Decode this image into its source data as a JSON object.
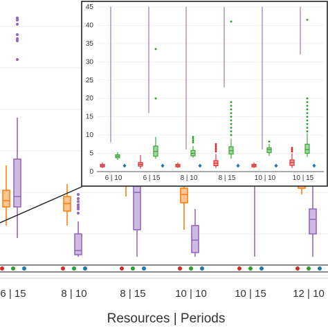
{
  "chart_data": [
    {
      "type": "box",
      "role": "main",
      "xlabel": "Resources | Periods",
      "categories": [
        "6 | 15",
        "8 | 10",
        "8 | 15",
        "10 | 10",
        "10 | 15",
        "12 | 10"
      ],
      "series_colors": {
        "red": "#d62728",
        "green": "#2ca02c",
        "blue": "#1f77b4",
        "orange": "#ff7f0e",
        "purple": "#9467bd"
      },
      "boxes": [
        {
          "category": "6 | 15",
          "series": "orange",
          "whisker_low": 12,
          "q1": 16.5,
          "median": 18,
          "q3": 20.5,
          "whisker_high": 26.5
        },
        {
          "category": "6 | 15",
          "series": "purple",
          "whisker_low": 9,
          "q1": 16.5,
          "median": 19,
          "q3": 28,
          "whisker_high": 38,
          "outliers": [
            52,
            56.5,
            57,
            58,
            60.5,
            61.5,
            62
          ]
        },
        {
          "category": "8 | 10",
          "series": "orange",
          "whisker_low": 12,
          "q1": 15.5,
          "median": 17.3,
          "q3": 19,
          "whisker_high": 22
        },
        {
          "category": "8 | 10",
          "series": "purple",
          "whisker_low": 4.5,
          "q1": 5,
          "median": 6,
          "q3": 10,
          "whisker_high": 13,
          "outliers": [
            15,
            16,
            16.5,
            17,
            17.8,
            18.5,
            19.5
          ]
        },
        {
          "category": "8 | 15",
          "series": "orange",
          "whisker_low": 19,
          "q1": 22,
          "median": 24.5,
          "q3": 27,
          "whisker_high": 33
        },
        {
          "category": "8 | 15",
          "series": "purple",
          "whisker_low": 4.5,
          "q1": 11,
          "median": 20,
          "q3": 29,
          "whisker_high": 38
        },
        {
          "category": "10 | 10",
          "series": "orange",
          "whisker_low": 11,
          "q1": 17.5,
          "median": 19.5,
          "q3": 21,
          "whisker_high": 25
        },
        {
          "category": "10 | 10",
          "series": "purple",
          "whisker_low": 4.5,
          "q1": 5.5,
          "median": 8.5,
          "q3": 12,
          "whisker_high": 16
        },
        {
          "category": "10 | 15",
          "series": "orange",
          "whisker_low": 22,
          "q1": 26,
          "median": 30,
          "q3": 36,
          "whisker_high": 37
        },
        {
          "category": "10 | 15",
          "series": "purple",
          "whisker_low": 4.5,
          "q1": 24,
          "median": 29,
          "q3": 35,
          "whisker_high": 38
        },
        {
          "category": "12 | 10",
          "series": "orange",
          "whisker_low": 19.5,
          "q1": 21,
          "median": 24,
          "q3": 26,
          "whisker_high": 28
        },
        {
          "category": "12 | 10",
          "series": "purple",
          "whisker_low": 4.5,
          "q1": 10,
          "median": 13.5,
          "q3": 16,
          "whisker_high": 22
        }
      ],
      "ground_markers": [
        {
          "category": "6 | 15",
          "series": "red"
        },
        {
          "category": "6 | 15",
          "series": "green"
        },
        {
          "category": "6 | 15",
          "series": "blue"
        },
        {
          "category": "8 | 10",
          "series": "red"
        },
        {
          "category": "8 | 10",
          "series": "green"
        },
        {
          "category": "8 | 10",
          "series": "blue"
        },
        {
          "category": "8 | 15",
          "series": "red"
        },
        {
          "category": "8 | 15",
          "series": "green"
        },
        {
          "category": "8 | 15",
          "series": "blue"
        },
        {
          "category": "10 | 10",
          "series": "red"
        },
        {
          "category": "10 | 10",
          "series": "green"
        },
        {
          "category": "10 | 10",
          "series": "blue"
        },
        {
          "category": "10 | 15",
          "series": "red"
        },
        {
          "category": "10 | 15",
          "series": "green"
        },
        {
          "category": "10 | 15",
          "series": "blue"
        },
        {
          "category": "12 | 10",
          "series": "red"
        },
        {
          "category": "12 | 10",
          "series": "green"
        },
        {
          "category": "12 | 10",
          "series": "blue"
        }
      ]
    },
    {
      "type": "box",
      "role": "inset-zoom",
      "ylim": [
        0,
        45
      ],
      "yticks": [
        0,
        5,
        10,
        15,
        20,
        25,
        30,
        35,
        40,
        45
      ],
      "categories": [
        "6 | 10",
        "6 | 15",
        "8 | 10",
        "8 | 15",
        "10 | 10",
        "10 | 15"
      ],
      "boxes": [
        {
          "category": "6 | 10",
          "series": "red",
          "whisker_low": 1,
          "q1": 1.3,
          "median": 1.6,
          "q3": 2,
          "whisker_high": 2.5
        },
        {
          "category": "6 | 10",
          "series": "green",
          "whisker_low": 3.2,
          "q1": 3.8,
          "median": 4.2,
          "q3": 4.6,
          "whisker_high": 5.3
        },
        {
          "category": "6 | 10",
          "series": "blue",
          "whisker_low": 1.2,
          "q1": 1.4,
          "median": 1.6,
          "q3": 1.8,
          "whisker_high": 2
        },
        {
          "category": "6 | 10",
          "series": "purple",
          "whisker_low": 8,
          "q1": 8,
          "median": 8,
          "q3": 8,
          "whisker_high": 45
        },
        {
          "category": "6 | 15",
          "series": "red",
          "whisker_low": 0.8,
          "q1": 1.5,
          "median": 2,
          "q3": 2.5,
          "whisker_high": 4.5
        },
        {
          "category": "6 | 15",
          "series": "green",
          "whisker_low": 3.5,
          "q1": 4.2,
          "median": 5.5,
          "q3": 7,
          "whisker_high": 9.5,
          "outliers": [
            20,
            33.5
          ]
        },
        {
          "category": "6 | 15",
          "series": "blue",
          "whisker_low": 1.2,
          "q1": 1.4,
          "median": 1.6,
          "q3": 1.8,
          "whisker_high": 2
        },
        {
          "category": "6 | 15",
          "series": "purple",
          "whisker_low": 16,
          "q1": 16,
          "median": 16,
          "q3": 16,
          "whisker_high": 45
        },
        {
          "category": "8 | 10",
          "series": "red",
          "whisker_low": 1,
          "q1": 1.3,
          "median": 1.6,
          "q3": 2,
          "whisker_high": 2.5
        },
        {
          "category": "8 | 10",
          "series": "green",
          "whisker_low": 3.8,
          "q1": 4.3,
          "median": 5,
          "q3": 5.8,
          "whisker_high": 7,
          "outliers": [
            8,
            8.5,
            9,
            9.5
          ]
        },
        {
          "category": "8 | 10",
          "series": "blue",
          "whisker_low": 1.2,
          "q1": 1.4,
          "median": 1.6,
          "q3": 1.8,
          "whisker_high": 2
        },
        {
          "category": "8 | 10",
          "series": "purple",
          "whisker_low": 6,
          "q1": 6,
          "median": 6,
          "q3": 6,
          "whisker_high": 45
        },
        {
          "category": "8 | 15",
          "series": "red",
          "whisker_low": 1,
          "q1": 1.6,
          "median": 2.3,
          "q3": 3,
          "whisker_high": 4.8,
          "outliers": [
            5.5,
            6,
            6.5,
            7,
            7.5
          ]
        },
        {
          "category": "8 | 15",
          "series": "green",
          "whisker_low": 3.5,
          "q1": 4.8,
          "median": 5.7,
          "q3": 6.8,
          "whisker_high": 9,
          "outliers": [
            10,
            11,
            12,
            13,
            14,
            15,
            16,
            17,
            18,
            19,
            41
          ]
        },
        {
          "category": "8 | 15",
          "series": "blue",
          "whisker_low": 1.2,
          "q1": 1.4,
          "median": 1.6,
          "q3": 1.8,
          "whisker_high": 2
        },
        {
          "category": "8 | 15",
          "series": "purple",
          "whisker_low": 23,
          "q1": 23,
          "median": 23,
          "q3": 23,
          "whisker_high": 45
        },
        {
          "category": "10 | 10",
          "series": "red",
          "whisker_low": 1,
          "q1": 1.3,
          "median": 1.6,
          "q3": 2,
          "whisker_high": 2.5
        },
        {
          "category": "10 | 10",
          "series": "green",
          "whisker_low": 4.3,
          "q1": 5.2,
          "median": 6,
          "q3": 6.5,
          "whisker_high": 7.6,
          "outliers": [
            8.2
          ]
        },
        {
          "category": "10 | 10",
          "series": "blue",
          "whisker_low": 1.2,
          "q1": 1.4,
          "median": 1.6,
          "q3": 1.8,
          "whisker_high": 2
        },
        {
          "category": "10 | 10",
          "series": "purple",
          "whisker_low": 6,
          "q1": 6,
          "median": 6,
          "q3": 6,
          "whisker_high": 45
        },
        {
          "category": "10 | 15",
          "series": "red",
          "whisker_low": 1,
          "q1": 1.7,
          "median": 2.5,
          "q3": 3.2,
          "whisker_high": 5,
          "outliers": [
            5.5,
            6,
            6.5
          ]
        },
        {
          "category": "10 | 15",
          "series": "green",
          "whisker_low": 4,
          "q1": 5,
          "median": 6,
          "q3": 7.5,
          "whisker_high": 10.5,
          "outliers": [
            11,
            12,
            13,
            14,
            15,
            16,
            17,
            18,
            19,
            20,
            41.5
          ]
        },
        {
          "category": "10 | 15",
          "series": "blue",
          "whisker_low": 1.2,
          "q1": 1.4,
          "median": 1.6,
          "q3": 1.8,
          "whisker_high": 2
        },
        {
          "category": "10 | 15",
          "series": "purple",
          "whisker_low": 32,
          "q1": 32,
          "median": 32,
          "q3": 32,
          "whisker_high": 45
        }
      ]
    }
  ]
}
